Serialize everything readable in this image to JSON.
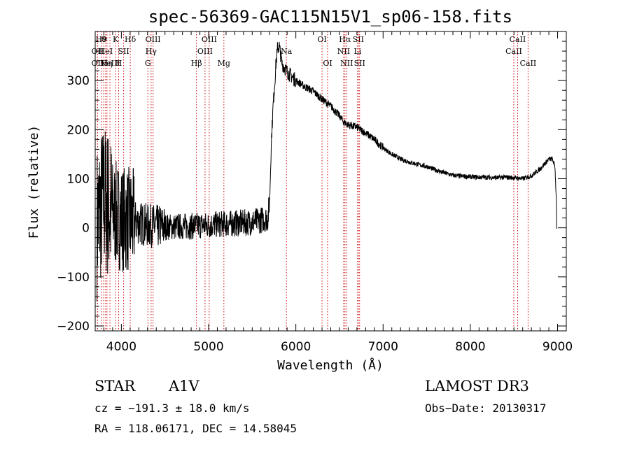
{
  "chart_data": {
    "type": "line",
    "title": "spec-56369-GAC115N15V1_sp06-158.fits",
    "xlabel": "Wavelength (Å)",
    "ylabel": "Flux (relative)",
    "xlim": [
      3700,
      9100
    ],
    "ylim": [
      -210,
      400
    ],
    "xticks": [
      4000,
      5000,
      6000,
      7000,
      8000,
      9000
    ],
    "yticks": [
      -200,
      -100,
      0,
      100,
      200,
      300
    ],
    "x_minor_step": 100,
    "y_minor_step": 20,
    "series": [
      {
        "name": "spectrum",
        "color": "#000000",
        "points": [
          [
            3720,
            10
          ],
          [
            3760,
            40
          ],
          [
            3800,
            60
          ],
          [
            3840,
            50
          ],
          [
            3880,
            35
          ],
          [
            3950,
            25
          ],
          [
            4000,
            20
          ],
          [
            4100,
            15
          ],
          [
            4200,
            10
          ],
          [
            4300,
            5
          ],
          [
            4400,
            3
          ],
          [
            4500,
            2
          ],
          [
            4600,
            2
          ],
          [
            4700,
            3
          ],
          [
            4800,
            3
          ],
          [
            4900,
            5
          ],
          [
            5000,
            5
          ],
          [
            5100,
            7
          ],
          [
            5200,
            8
          ],
          [
            5300,
            9
          ],
          [
            5400,
            10
          ],
          [
            5500,
            12
          ],
          [
            5600,
            16
          ],
          [
            5680,
            20
          ],
          [
            5700,
            60
          ],
          [
            5720,
            180
          ],
          [
            5740,
            250
          ],
          [
            5760,
            300
          ],
          [
            5770,
            330
          ],
          [
            5790,
            365
          ],
          [
            5810,
            370
          ],
          [
            5840,
            335
          ],
          [
            5900,
            318
          ],
          [
            6000,
            300
          ],
          [
            6100,
            288
          ],
          [
            6200,
            278
          ],
          [
            6300,
            262
          ],
          [
            6400,
            248
          ],
          [
            6500,
            228
          ],
          [
            6550,
            215
          ],
          [
            6600,
            210
          ],
          [
            6700,
            205
          ],
          [
            6800,
            193
          ],
          [
            6900,
            180
          ],
          [
            7000,
            163
          ],
          [
            7100,
            150
          ],
          [
            7200,
            140
          ],
          [
            7300,
            134
          ],
          [
            7400,
            129
          ],
          [
            7500,
            125
          ],
          [
            7600,
            118
          ],
          [
            7700,
            112
          ],
          [
            7800,
            107
          ],
          [
            7900,
            105
          ],
          [
            8000,
            104
          ],
          [
            8100,
            103
          ],
          [
            8200,
            103
          ],
          [
            8300,
            102
          ],
          [
            8400,
            103
          ],
          [
            8500,
            102
          ],
          [
            8600,
            100
          ],
          [
            8700,
            106
          ],
          [
            8800,
            120
          ],
          [
            8850,
            130
          ],
          [
            8900,
            140
          ],
          [
            8940,
            140
          ],
          [
            8970,
            125
          ],
          [
            8985,
            60
          ],
          [
            8990,
            0
          ]
        ]
      }
    ],
    "line_markers": [
      {
        "wavelength": 3771,
        "label": "H9",
        "row": 1
      },
      {
        "wavelength": 3798,
        "label": "θ",
        "row": 1
      },
      {
        "wavelength": 3727,
        "label": "OII",
        "row": 2
      },
      {
        "wavelength": 3727,
        "label": "OII",
        "row": 3
      },
      {
        "wavelength": 3820,
        "label": "HeI",
        "row": 2
      },
      {
        "wavelength": 3835,
        "label": "Hη",
        "row": 3
      },
      {
        "wavelength": 3869,
        "label": "NeIII",
        "row": 3
      },
      {
        "wavelength": 3934,
        "label": "K",
        "row": 1
      },
      {
        "wavelength": 3969,
        "label": "H",
        "row": 3
      },
      {
        "wavelength": 4026,
        "label": "SII",
        "row": 2
      },
      {
        "wavelength": 4102,
        "label": "Hδ",
        "row": 1
      },
      {
        "wavelength": 4304,
        "label": "G",
        "row": 3
      },
      {
        "wavelength": 4341,
        "label": "Hγ",
        "row": 2
      },
      {
        "wavelength": 4363,
        "label": "OIII",
        "row": 1
      },
      {
        "wavelength": 4861,
        "label": "Hβ",
        "row": 3
      },
      {
        "wavelength": 4959,
        "label": "OIII",
        "row": 2
      },
      {
        "wavelength": 5007,
        "label": "OIII",
        "row": 1
      },
      {
        "wavelength": 5175,
        "label": "Mg",
        "row": 3
      },
      {
        "wavelength": 5892,
        "label": "Na",
        "row": 2
      },
      {
        "wavelength": 6300,
        "label": "OI",
        "row": 1
      },
      {
        "wavelength": 6364,
        "label": "OI",
        "row": 3
      },
      {
        "wavelength": 6548,
        "label": "NII",
        "row": 2
      },
      {
        "wavelength": 6563,
        "label": "Hα",
        "row": 1
      },
      {
        "wavelength": 6583,
        "label": "NII",
        "row": 3
      },
      {
        "wavelength": 6708,
        "label": "Li",
        "row": 2
      },
      {
        "wavelength": 6716,
        "label": "SII",
        "row": 1
      },
      {
        "wavelength": 6731,
        "label": "SII",
        "row": 3
      },
      {
        "wavelength": 8498,
        "label": "CaII",
        "row": 2
      },
      {
        "wavelength": 8542,
        "label": "CaII",
        "row": 1
      },
      {
        "wavelength": 8662,
        "label": "CaII",
        "row": 3
      }
    ],
    "marker_color": "#cc0000"
  },
  "info": {
    "object_class": "STAR",
    "subclass": "A1V",
    "survey": "LAMOST DR3",
    "cz": "cz = −191.3 ± 18.0 km/s",
    "obs_date": "Obs−Date: 20130317",
    "coords": "RA = 118.06171, DEC =  14.58045"
  }
}
